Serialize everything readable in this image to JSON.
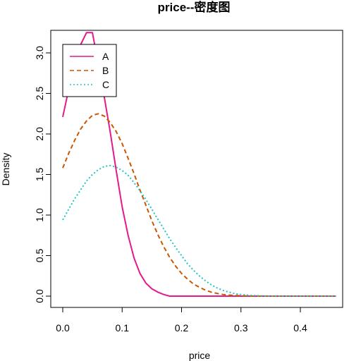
{
  "chart_data": {
    "type": "line",
    "title": "price--密度图",
    "xlabel": "price",
    "ylabel": "Density",
    "xlim": [
      0.0,
      0.47
    ],
    "ylim": [
      0.0,
      3.2
    ],
    "x_ticks": [
      "0.0",
      "0.1",
      "0.2",
      "0.3",
      "0.4"
    ],
    "y_ticks": [
      "0.0",
      "0.5",
      "1.0",
      "1.5",
      "2.0",
      "2.5",
      "3.0"
    ],
    "grid": false,
    "legend_position": "top-left",
    "series": [
      {
        "name": "A",
        "color": "#e6198c",
        "line_style": "solid",
        "x": [
          0.0,
          0.01,
          0.02,
          0.03,
          0.04,
          0.05,
          0.06,
          0.07,
          0.08,
          0.09,
          0.1,
          0.11,
          0.12,
          0.13,
          0.14,
          0.15,
          0.16,
          0.17,
          0.18,
          0.2,
          0.25,
          0.3,
          0.35,
          0.4,
          0.46
        ],
        "y": [
          2.21,
          2.55,
          2.85,
          3.1,
          3.25,
          3.25,
          2.85,
          2.45,
          2.02,
          1.55,
          1.1,
          0.75,
          0.47,
          0.28,
          0.16,
          0.09,
          0.05,
          0.02,
          0.0,
          0.0,
          0.0,
          0.0,
          0.0,
          0.0,
          0.0
        ]
      },
      {
        "name": "B",
        "color": "#cc5500",
        "line_style": "dashed",
        "x": [
          0.0,
          0.01,
          0.02,
          0.03,
          0.04,
          0.05,
          0.06,
          0.07,
          0.08,
          0.09,
          0.1,
          0.11,
          0.12,
          0.13,
          0.14,
          0.15,
          0.16,
          0.17,
          0.18,
          0.19,
          0.2,
          0.21,
          0.22,
          0.23,
          0.24,
          0.25,
          0.26,
          0.27,
          0.28,
          0.29,
          0.3,
          0.32,
          0.35,
          0.4,
          0.46
        ],
        "y": [
          1.58,
          1.76,
          1.92,
          2.06,
          2.16,
          2.23,
          2.25,
          2.22,
          2.14,
          2.03,
          1.88,
          1.7,
          1.51,
          1.31,
          1.12,
          0.93,
          0.76,
          0.61,
          0.48,
          0.37,
          0.28,
          0.21,
          0.15,
          0.11,
          0.075,
          0.05,
          0.033,
          0.02,
          0.013,
          0.008,
          0.004,
          0.0,
          0.0,
          0.0,
          0.0
        ]
      },
      {
        "name": "C",
        "color": "#22c4c4",
        "line_style": "dotted",
        "x": [
          0.0,
          0.01,
          0.02,
          0.03,
          0.04,
          0.05,
          0.06,
          0.07,
          0.08,
          0.09,
          0.1,
          0.11,
          0.12,
          0.13,
          0.14,
          0.15,
          0.16,
          0.17,
          0.18,
          0.19,
          0.2,
          0.21,
          0.22,
          0.23,
          0.24,
          0.25,
          0.26,
          0.27,
          0.28,
          0.29,
          0.3,
          0.31,
          0.32,
          0.33,
          0.35,
          0.4,
          0.46
        ],
        "y": [
          0.94,
          1.07,
          1.2,
          1.31,
          1.42,
          1.5,
          1.56,
          1.6,
          1.61,
          1.59,
          1.55,
          1.49,
          1.4,
          1.3,
          1.19,
          1.07,
          0.95,
          0.83,
          0.71,
          0.6,
          0.5,
          0.4,
          0.32,
          0.25,
          0.19,
          0.14,
          0.1,
          0.07,
          0.05,
          0.03,
          0.02,
          0.013,
          0.008,
          0.004,
          0.0,
          0.0,
          0.0
        ]
      }
    ]
  }
}
